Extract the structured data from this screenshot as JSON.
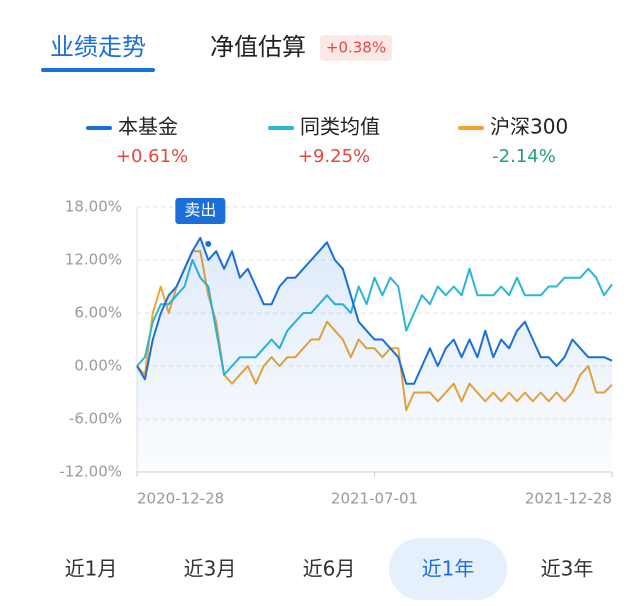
{
  "tabs": {
    "items": [
      "业绩走势",
      "净值估算"
    ],
    "active": 0,
    "badge": "+0.38%"
  },
  "chart_data": {
    "type": "line",
    "categories": [
      "2020-12-28",
      null,
      null,
      null,
      null,
      null,
      null,
      null,
      null,
      null,
      null,
      null,
      null,
      null,
      null,
      null,
      null,
      null,
      null,
      null,
      null,
      null,
      null,
      null,
      null,
      null,
      null,
      null,
      null,
      null,
      "2021-07-01",
      null,
      null,
      null,
      null,
      null,
      null,
      null,
      null,
      null,
      null,
      null,
      null,
      null,
      null,
      null,
      null,
      null,
      null,
      null,
      null,
      null,
      null,
      null,
      null,
      null,
      null,
      null,
      null,
      null,
      "2021-12-28"
    ],
    "series": [
      {
        "name": "本基金",
        "color": "#1b6fd9",
        "summary": "+0.61%",
        "summary_color": "#e5483c",
        "values": [
          0,
          -1.5,
          3,
          6,
          8,
          9,
          11,
          13,
          14.5,
          12,
          13,
          11,
          13,
          10,
          11,
          9,
          7,
          7,
          9,
          10,
          10,
          11,
          12,
          13,
          14,
          12,
          11,
          8,
          5,
          4,
          3,
          3,
          2,
          1,
          -2,
          -2,
          0,
          2,
          0,
          2,
          3,
          1,
          3,
          1,
          4,
          1,
          3,
          2,
          4,
          5,
          3,
          1,
          1,
          0,
          1,
          3,
          2,
          1,
          1,
          1,
          0.6
        ]
      },
      {
        "name": "同类均值",
        "color": "#2ab6d8",
        "summary": "+9.25%",
        "summary_color": "#e5483c",
        "values": [
          0,
          1,
          5,
          7,
          7,
          8,
          9,
          12,
          10,
          9,
          4,
          -1,
          0,
          1,
          1,
          1,
          2,
          3,
          2,
          4,
          5,
          6,
          6,
          7,
          8,
          7,
          7,
          6,
          9,
          7,
          10,
          8,
          10,
          9,
          4,
          6,
          8,
          7,
          9,
          8,
          9,
          8,
          11,
          8,
          8,
          8,
          9,
          8,
          10,
          8,
          8,
          8,
          9,
          9,
          10,
          10,
          10,
          11,
          10,
          8,
          9.25
        ]
      },
      {
        "name": "沪深300",
        "color": "#f0a42e",
        "summary": "-2.14%",
        "summary_color": "#1ea37c",
        "values": [
          0,
          -1,
          6,
          9,
          6,
          9,
          11,
          13,
          13,
          8,
          5,
          -1,
          -2,
          -1,
          0,
          -2,
          0,
          1,
          0,
          1,
          1,
          2,
          3,
          3,
          5,
          4,
          3,
          1,
          3,
          2,
          2,
          1,
          2,
          2,
          -5,
          -3,
          -3,
          -3,
          -4,
          -3,
          -2,
          -4,
          -2,
          -3,
          -4,
          -3,
          -4,
          -3,
          -4,
          -3,
          -4,
          -3,
          -4,
          -3,
          -4,
          -3,
          -1,
          0,
          -3,
          -3,
          -2.14
        ]
      }
    ],
    "annotation": "卖出",
    "annotation_index": 8,
    "ylim": [
      -12,
      18
    ],
    "yticks": [
      {
        "value": -12,
        "label": "-12.00%"
      },
      {
        "value": -6,
        "label": "-6.00%"
      },
      {
        "value": 0,
        "label": "0.00%"
      },
      {
        "value": 6,
        "label": "6.00%"
      },
      {
        "value": 12,
        "label": "12.00%"
      },
      {
        "value": 18,
        "label": "18.00%"
      }
    ],
    "grid": true
  },
  "periods": {
    "items": [
      "近1月",
      "近3月",
      "近6月",
      "近1年",
      "近3年"
    ],
    "active": 3
  }
}
